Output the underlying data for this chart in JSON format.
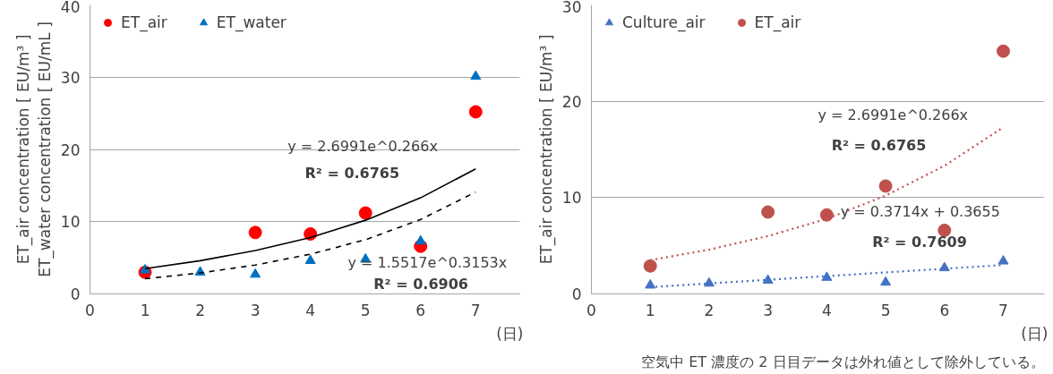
{
  "chart_data": [
    {
      "type": "scatter",
      "xlabel": "(日)",
      "ylabel": "ET_air concentration [ EU/m³ ]\nET_water concentration [ EU/mL ]",
      "xlim": [
        0,
        7.8
      ],
      "xticks": [
        0,
        1,
        2,
        3,
        4,
        5,
        6,
        7
      ],
      "ylim": [
        0,
        40
      ],
      "yticks": [
        0,
        10,
        20,
        30,
        40
      ],
      "grid": "y",
      "legend": "top left",
      "series": [
        {
          "name": "ET_air",
          "color": "#ff0000",
          "marker": "circle",
          "x": [
            1,
            3,
            4,
            5,
            6,
            7
          ],
          "values": [
            3.0,
            8.5,
            8.3,
            11.2,
            6.6,
            25.2
          ]
        },
        {
          "name": "ET_water",
          "color": "#0070c0",
          "marker": "triangle",
          "x": [
            1,
            2,
            3,
            4,
            5,
            6,
            7
          ],
          "values": [
            3.3,
            3.0,
            2.7,
            4.6,
            4.8,
            7.3,
            30.1
          ]
        },
        {
          "type": "line",
          "color": "#000000",
          "line_style": "solid",
          "x": [
            1,
            2,
            3,
            4,
            5,
            6,
            7
          ],
          "values": [
            3.5,
            4.6,
            6.0,
            7.8,
            10.2,
            13.3,
            17.3
          ]
        },
        {
          "type": "line",
          "color": "#000000",
          "line_style": "dashed",
          "x": [
            1,
            2,
            3,
            4,
            5,
            6,
            7
          ],
          "values": [
            2.1,
            2.9,
            4.0,
            5.5,
            7.5,
            10.3,
            14.1
          ]
        }
      ],
      "annotations": [
        "y = 2.6991e^0.266x",
        "R² = 0.6765",
        "y = 1.5517e^0.3153x",
        "R² = 0.6906"
      ]
    },
    {
      "type": "scatter",
      "xlabel": "(日)",
      "ylabel": "ET_air concentration [ EU/m³ ]",
      "xlim": [
        0,
        7.7
      ],
      "xticks": [
        0,
        1,
        2,
        3,
        4,
        5,
        6,
        7
      ],
      "ylim": [
        0,
        30
      ],
      "yticks": [
        0,
        10,
        20,
        30
      ],
      "grid": "y",
      "legend": "top left",
      "series": [
        {
          "name": "Culture_air",
          "color": "#4472c4",
          "marker": "triangle",
          "x": [
            1,
            2,
            3,
            4,
            5,
            6,
            7
          ],
          "values": [
            0.9,
            1.1,
            1.4,
            1.7,
            1.2,
            2.7,
            3.4
          ]
        },
        {
          "name": "ET_air",
          "color": "#c0504d",
          "marker": "circle",
          "x": [
            1,
            3,
            4,
            5,
            6,
            7
          ],
          "values": [
            2.9,
            8.5,
            8.2,
            11.2,
            6.6,
            25.2
          ]
        },
        {
          "type": "line",
          "color": "#4472c4",
          "line_style": "dotted",
          "x": [
            1,
            7
          ],
          "values": [
            0.7,
            3.0
          ]
        },
        {
          "type": "line",
          "color": "#c0504d",
          "line_style": "dotted",
          "x": [
            1,
            2,
            3,
            4,
            5,
            6,
            7
          ],
          "values": [
            3.5,
            4.6,
            6.0,
            7.8,
            10.2,
            13.3,
            17.3
          ]
        }
      ],
      "annotations": [
        "y = 2.6991e^0.266x",
        "R² = 0.6765",
        "y = 0.3714x + 0.3655",
        "R² = 0.7609",
        "空気中 ET 濃度の 2 日目データは外れ値として除外している。"
      ]
    }
  ]
}
